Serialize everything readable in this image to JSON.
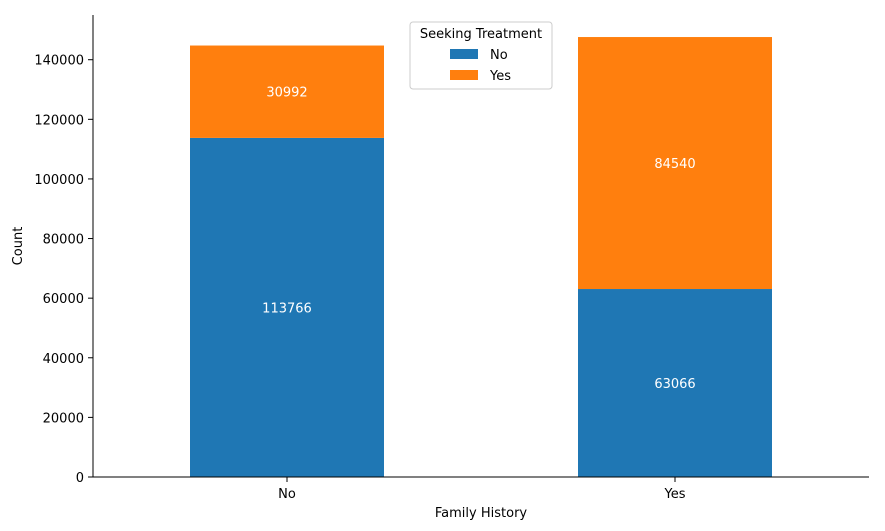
{
  "chart_data": {
    "type": "bar",
    "stacked": true,
    "categories": [
      "No",
      "Yes"
    ],
    "series": [
      {
        "name": "No",
        "values": [
          113766,
          63066
        ],
        "color": "#1f77b4"
      },
      {
        "name": "Yes",
        "values": [
          30992,
          84540
        ],
        "color": "#ff7f0e"
      }
    ],
    "title": "",
    "xlabel": "Family History",
    "ylabel": "Count",
    "ylim": [
      0,
      155000
    ],
    "yticks": [
      0,
      20000,
      40000,
      60000,
      80000,
      100000,
      120000,
      140000
    ],
    "grid": false,
    "legend": {
      "title": "Seeking Treatment",
      "placement": "top-center"
    },
    "data_label_color": "#ffffff"
  }
}
